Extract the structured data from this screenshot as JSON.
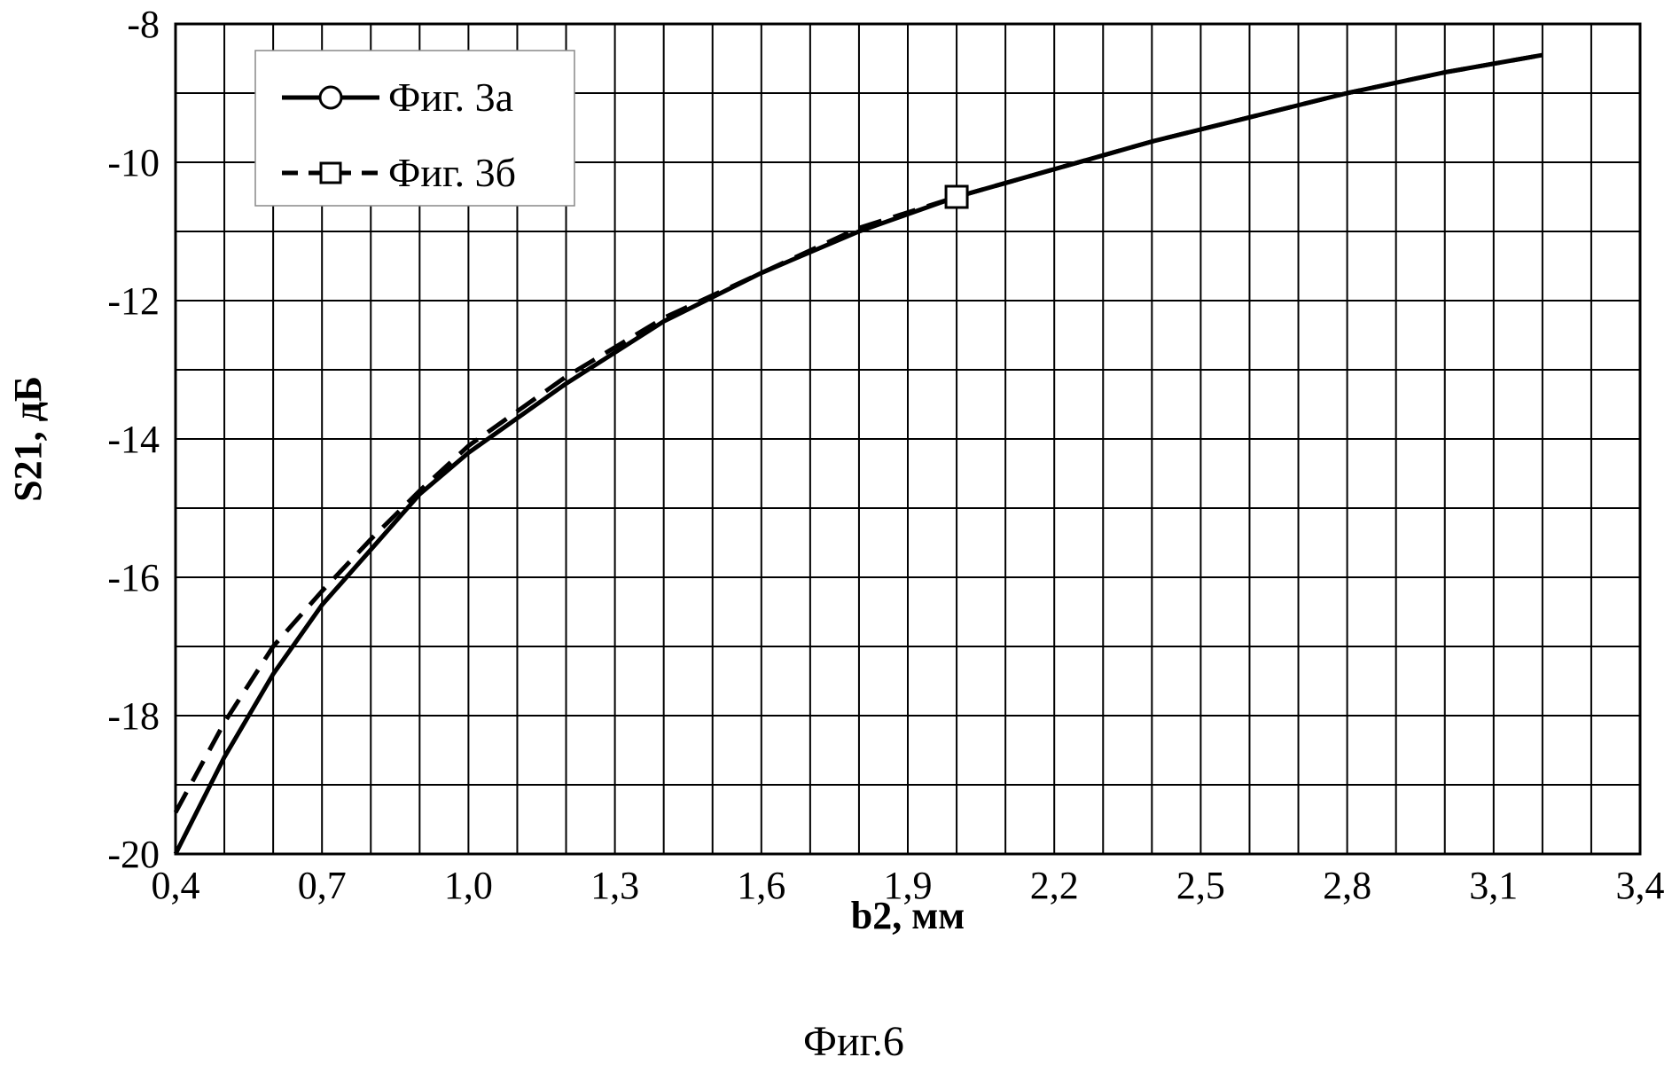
{
  "chart_data": {
    "type": "line",
    "title": "",
    "caption": "Фиг.6",
    "xlabel": "b2, мм",
    "ylabel": "S21, дБ",
    "xlim": [
      0.4,
      3.4
    ],
    "ylim": [
      -20,
      -8
    ],
    "x_ticks": [
      "0,4",
      "0,7",
      "1,0",
      "1,3",
      "1,6",
      "1,9",
      "2,2",
      "2,5",
      "2,8",
      "3,1",
      "3,4"
    ],
    "y_ticks": [
      "-8",
      "-10",
      "-12",
      "-14",
      "-16",
      "-18",
      "-20"
    ],
    "grid": true,
    "legend_position": "top-left",
    "series": [
      {
        "name": "Фиг. 3а",
        "line_style": "solid",
        "marker": "circle",
        "color": "#000000",
        "x": [
          0.4,
          0.5,
          0.6,
          0.7,
          0.8,
          0.9,
          1.0,
          1.2,
          1.4,
          1.6,
          1.8,
          2.0,
          2.2,
          2.4,
          2.6,
          2.8,
          3.0,
          3.2
        ],
        "y": [
          -20.0,
          -18.6,
          -17.4,
          -16.4,
          -15.6,
          -14.8,
          -14.2,
          -13.2,
          -12.3,
          -11.6,
          -11.0,
          -10.5,
          -10.1,
          -9.7,
          -9.35,
          -9.0,
          -8.7,
          -8.45
        ]
      },
      {
        "name": "Фиг. 3б",
        "line_style": "dashed",
        "marker": "square",
        "color": "#000000",
        "x": [
          0.4,
          0.5,
          0.6,
          0.7,
          0.8,
          0.9,
          1.0,
          1.2,
          1.4,
          1.6,
          1.8,
          2.0,
          2.2,
          2.4,
          2.6,
          2.8,
          3.0,
          3.2
        ],
        "y": [
          -19.4,
          -18.1,
          -17.0,
          -16.2,
          -15.45,
          -14.75,
          -14.1,
          -13.1,
          -12.25,
          -11.6,
          -10.95,
          -10.5,
          -10.1,
          -9.7,
          -9.35,
          -9.0,
          -8.7,
          -8.45
        ],
        "marker_points": [
          {
            "x": 2.0,
            "y": -10.5
          }
        ]
      }
    ]
  }
}
